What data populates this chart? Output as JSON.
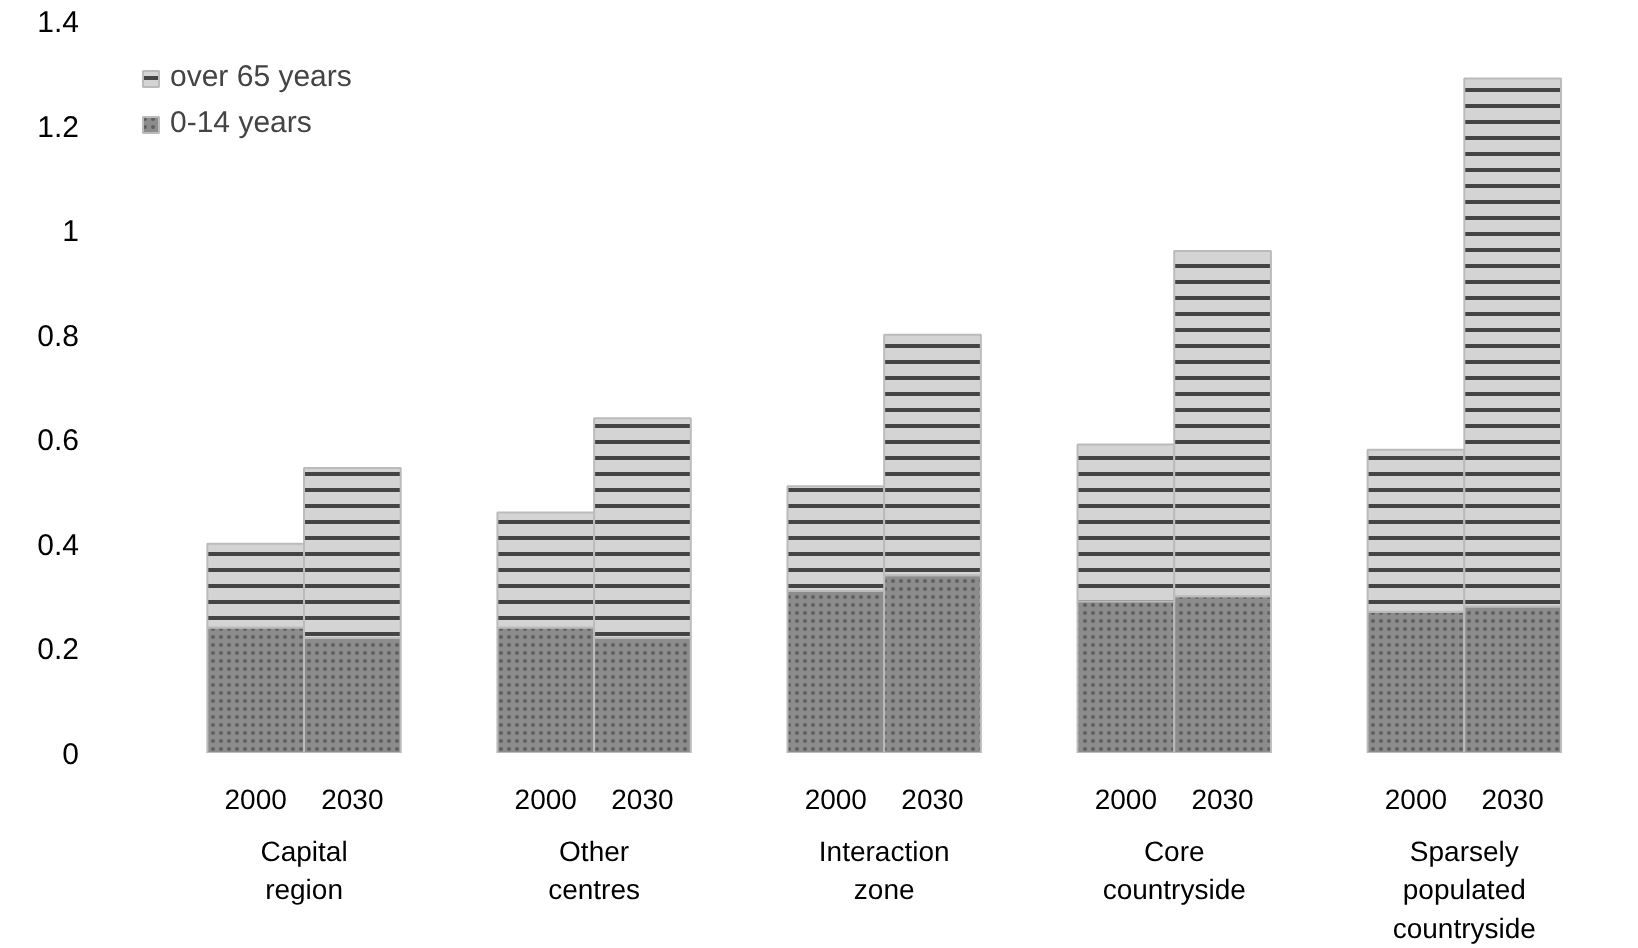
{
  "chart_data": {
    "type": "bar",
    "stacked": true,
    "categories": [
      "2000",
      "2030",
      "2000",
      "2030",
      "2000",
      "2030",
      "2000",
      "2030",
      "2000",
      "2030"
    ],
    "series": [
      {
        "name": "0-14 years",
        "color": "#8c8c8c",
        "values": [
          0.24,
          0.22,
          0.24,
          0.22,
          0.31,
          0.34,
          0.29,
          0.3,
          0.27,
          0.28
        ]
      },
      {
        "name": "over 65 years",
        "color": "#d4d4d4",
        "values": [
          0.16,
          0.325,
          0.22,
          0.42,
          0.2,
          0.46,
          0.3,
          0.66,
          0.31,
          1.01
        ]
      }
    ],
    "annotations": [
      "Capital region",
      "Other centres",
      "Interaction zone",
      "Core countryside",
      "Sparsely populated countryside"
    ],
    "ylim": [
      0,
      1.4
    ],
    "yticks": [
      0,
      0.2,
      0.4,
      0.6,
      0.8,
      1,
      1.2,
      1.4
    ],
    "legend": "top left"
  }
}
